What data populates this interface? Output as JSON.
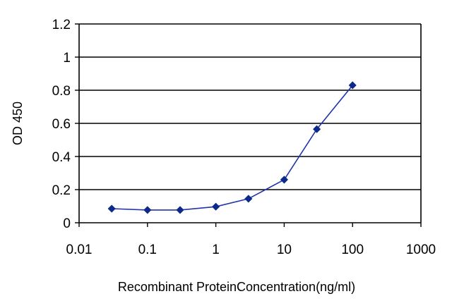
{
  "chart_data": {
    "type": "line",
    "title": "",
    "xlabel": "Recombinant ProteinConcentration(ng/ml)",
    "ylabel": "OD 450",
    "x_scale": "log",
    "xlim": [
      0.01,
      1000
    ],
    "ylim": [
      0,
      1.2
    ],
    "x_ticks": [
      "0.01",
      "0.1",
      "1",
      "10",
      "100",
      "1000"
    ],
    "y_ticks": [
      "0",
      "0.2",
      "0.4",
      "0.6",
      "0.8",
      "1",
      "1.2"
    ],
    "grid": "horizontal",
    "legend": "none",
    "series": [
      {
        "x": [
          0.03,
          0.1,
          0.3,
          1,
          3,
          10,
          30,
          100
        ],
        "y": [
          0.085,
          0.077,
          0.077,
          0.097,
          0.145,
          0.26,
          0.565,
          0.83
        ]
      }
    ],
    "colors": {
      "series": "#1f35a8",
      "marker": "#0d2a8a",
      "grid": "#000000",
      "axis": "#000000",
      "background": "#ffffff"
    }
  }
}
